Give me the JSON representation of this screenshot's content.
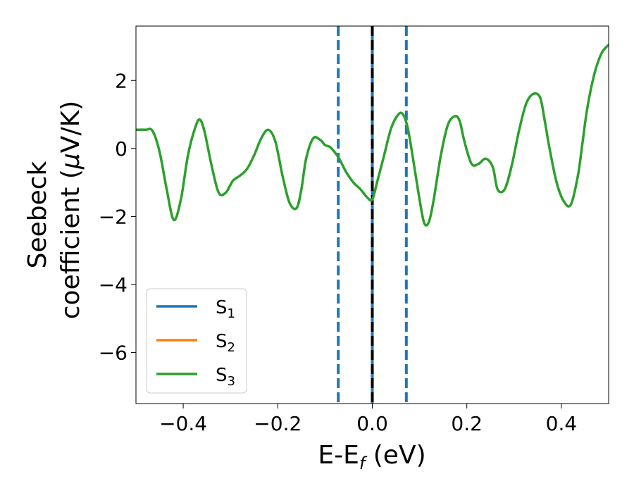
{
  "chart_data": {
    "type": "line",
    "title": "",
    "xlabel": "E-E",
    "xlabel_sub": "f",
    "xlabel_unit": " (eV)",
    "ylabel_line1": "Seebeck",
    "ylabel_line2": "coefficient  (",
    "ylabel_mu": "μ",
    "ylabel_unit": "V/K)",
    "xlim": [
      -0.5,
      0.5
    ],
    "ylim": [
      -7.5,
      3.6
    ],
    "xticks": [
      -0.4,
      -0.2,
      0.0,
      0.2,
      0.4
    ],
    "xtick_labels": [
      "−0.4",
      "−0.2",
      "0.0",
      "0.2",
      "0.4"
    ],
    "yticks": [
      -6,
      -4,
      -2,
      0,
      2
    ],
    "ytick_labels": [
      "−6",
      "−4",
      "−2",
      "0",
      "2"
    ],
    "grid": false,
    "legend_position": "bottom-left",
    "series": [
      {
        "name": "S",
        "sub": "1",
        "color": "#1f77b4",
        "x": [],
        "y": []
      },
      {
        "name": "S",
        "sub": "2",
        "color": "#ff7f0e",
        "x": [],
        "y": []
      },
      {
        "name": "S",
        "sub": "3",
        "color": "#2ca02c",
        "x": [
          -0.5,
          -0.48,
          -0.465,
          -0.45,
          -0.435,
          -0.42,
          -0.405,
          -0.39,
          -0.375,
          -0.365,
          -0.355,
          -0.34,
          -0.325,
          -0.31,
          -0.295,
          -0.28,
          -0.265,
          -0.25,
          -0.235,
          -0.22,
          -0.205,
          -0.19,
          -0.175,
          -0.16,
          -0.15,
          -0.14,
          -0.125,
          -0.11,
          -0.1,
          -0.09,
          -0.08,
          -0.07,
          -0.055,
          -0.04,
          -0.025,
          -0.01,
          0.0,
          0.01,
          0.025,
          0.04,
          0.055,
          0.065,
          0.075,
          0.085,
          0.1,
          0.11,
          0.12,
          0.13,
          0.145,
          0.16,
          0.175,
          0.185,
          0.195,
          0.21,
          0.225,
          0.24,
          0.255,
          0.265,
          0.28,
          0.295,
          0.31,
          0.325,
          0.34,
          0.355,
          0.365,
          0.375,
          0.39,
          0.405,
          0.42,
          0.435,
          0.445,
          0.455,
          0.47,
          0.485,
          0.5
        ],
        "y": [
          0.55,
          0.55,
          0.52,
          -0.1,
          -1.2,
          -2.1,
          -1.5,
          -0.2,
          0.6,
          0.85,
          0.5,
          -0.5,
          -1.3,
          -1.3,
          -0.95,
          -0.8,
          -0.6,
          -0.2,
          0.3,
          0.55,
          0.2,
          -0.8,
          -1.6,
          -1.75,
          -1.2,
          -0.3,
          0.3,
          0.25,
          0.1,
          0.05,
          -0.1,
          -0.3,
          -0.7,
          -1.0,
          -1.2,
          -1.45,
          -1.5,
          -1.0,
          -0.2,
          0.6,
          1.0,
          1.0,
          0.6,
          -0.2,
          -1.5,
          -2.2,
          -2.15,
          -1.5,
          -0.2,
          0.7,
          0.95,
          0.8,
          0.2,
          -0.45,
          -0.45,
          -0.3,
          -0.55,
          -1.2,
          -1.2,
          -0.5,
          0.5,
          1.3,
          1.6,
          1.5,
          0.8,
          0.0,
          -1.0,
          -1.55,
          -1.65,
          -0.8,
          0.2,
          1.2,
          2.2,
          2.8,
          3.05
        ]
      }
    ],
    "vlines": [
      {
        "x": -0.072,
        "style": "dashed",
        "color": "#1f77b4"
      },
      {
        "x": 0.0,
        "style": "solid",
        "color": "#1f77b4"
      },
      {
        "x": 0.0,
        "style": "dashed",
        "color": "#000000"
      },
      {
        "x": 0.072,
        "style": "dashed",
        "color": "#1f77b4"
      }
    ]
  }
}
